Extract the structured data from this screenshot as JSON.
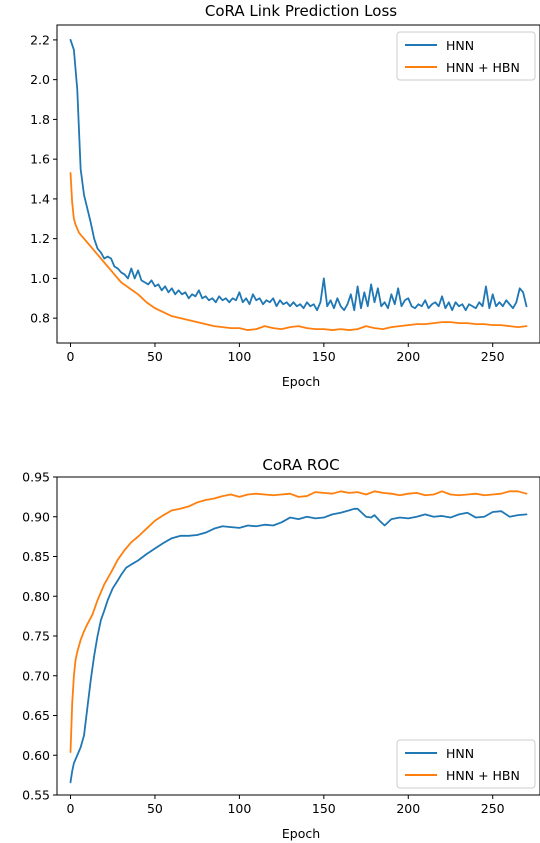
{
  "colors": {
    "hnn": "#1f77b4",
    "hnn_hbn": "#ff7f0e",
    "axis": "#000000",
    "legend_border": "#cccccc"
  },
  "chart_data": [
    {
      "type": "line",
      "title": "CoRA Link Prediction Loss",
      "xlabel": "Epoch",
      "ylabel": "",
      "xlim": [
        -8,
        278
      ],
      "ylim": [
        0.675,
        2.275
      ],
      "xticks": [
        0,
        50,
        100,
        150,
        200,
        250
      ],
      "yticks": [
        0.8,
        1.0,
        1.2,
        1.4,
        1.6,
        1.8,
        2.0,
        2.2
      ],
      "ytick_labels": [
        "0.8",
        "1.0",
        "1.2",
        "1.4",
        "1.6",
        "1.8",
        "2.0",
        "2.2"
      ],
      "legend_position": "top-right",
      "series": [
        {
          "name": "HNN",
          "color": "#1f77b4",
          "x": [
            0,
            2,
            4,
            6,
            8,
            10,
            12,
            14,
            16,
            18,
            20,
            22,
            24,
            26,
            28,
            30,
            32,
            34,
            36,
            38,
            40,
            42,
            44,
            46,
            48,
            50,
            52,
            54,
            56,
            58,
            60,
            62,
            64,
            66,
            68,
            70,
            72,
            74,
            76,
            78,
            80,
            82,
            84,
            86,
            88,
            90,
            92,
            94,
            96,
            98,
            100,
            102,
            104,
            106,
            108,
            110,
            112,
            114,
            116,
            118,
            120,
            122,
            124,
            126,
            128,
            130,
            132,
            134,
            136,
            138,
            140,
            142,
            144,
            146,
            148,
            150,
            152,
            154,
            156,
            158,
            160,
            162,
            164,
            166,
            168,
            170,
            172,
            174,
            176,
            178,
            180,
            182,
            184,
            186,
            188,
            190,
            192,
            194,
            196,
            198,
            200,
            202,
            204,
            206,
            208,
            210,
            212,
            214,
            216,
            218,
            220,
            222,
            224,
            226,
            228,
            230,
            232,
            234,
            236,
            238,
            240,
            242,
            244,
            246,
            248,
            250,
            252,
            254,
            256,
            258,
            260,
            262,
            264,
            266,
            268,
            270
          ],
          "y": [
            2.2,
            2.15,
            1.95,
            1.55,
            1.42,
            1.35,
            1.28,
            1.2,
            1.15,
            1.13,
            1.1,
            1.11,
            1.1,
            1.06,
            1.05,
            1.03,
            1.02,
            1.0,
            1.05,
            1.0,
            1.04,
            0.99,
            0.98,
            0.97,
            0.99,
            0.96,
            0.97,
            0.94,
            0.96,
            0.93,
            0.95,
            0.92,
            0.94,
            0.92,
            0.93,
            0.9,
            0.92,
            0.91,
            0.94,
            0.9,
            0.91,
            0.89,
            0.9,
            0.88,
            0.91,
            0.89,
            0.9,
            0.88,
            0.9,
            0.89,
            0.93,
            0.88,
            0.9,
            0.87,
            0.92,
            0.89,
            0.9,
            0.87,
            0.89,
            0.88,
            0.9,
            0.86,
            0.89,
            0.87,
            0.88,
            0.86,
            0.88,
            0.86,
            0.87,
            0.85,
            0.88,
            0.86,
            0.87,
            0.84,
            0.88,
            1.0,
            0.86,
            0.89,
            0.85,
            0.9,
            0.86,
            0.84,
            0.87,
            0.92,
            0.84,
            0.96,
            0.85,
            0.93,
            0.86,
            0.97,
            0.88,
            0.95,
            0.86,
            0.88,
            0.85,
            0.92,
            0.87,
            0.95,
            0.86,
            0.89,
            0.9,
            0.86,
            0.85,
            0.87,
            0.86,
            0.89,
            0.85,
            0.87,
            0.88,
            0.86,
            0.91,
            0.85,
            0.88,
            0.84,
            0.88,
            0.86,
            0.87,
            0.84,
            0.87,
            0.86,
            0.85,
            0.88,
            0.86,
            0.96,
            0.85,
            0.92,
            0.86,
            0.88,
            0.86,
            0.89,
            0.87,
            0.85,
            0.88,
            0.95,
            0.93,
            0.86
          ]
        },
        {
          "name": "HNN + HBN",
          "color": "#ff7f0e",
          "x": [
            0,
            1,
            2,
            3,
            5,
            8,
            10,
            13,
            16,
            20,
            25,
            30,
            35,
            40,
            45,
            50,
            55,
            60,
            65,
            70,
            75,
            80,
            85,
            90,
            95,
            100,
            105,
            110,
            115,
            120,
            125,
            130,
            135,
            140,
            145,
            150,
            155,
            160,
            165,
            170,
            175,
            180,
            185,
            190,
            195,
            200,
            205,
            210,
            215,
            220,
            225,
            230,
            235,
            240,
            245,
            250,
            255,
            260,
            265,
            270
          ],
          "y": [
            1.53,
            1.38,
            1.3,
            1.27,
            1.23,
            1.2,
            1.18,
            1.15,
            1.12,
            1.08,
            1.03,
            0.98,
            0.95,
            0.92,
            0.88,
            0.85,
            0.83,
            0.81,
            0.8,
            0.79,
            0.78,
            0.77,
            0.76,
            0.755,
            0.75,
            0.75,
            0.74,
            0.745,
            0.76,
            0.75,
            0.745,
            0.755,
            0.76,
            0.75,
            0.745,
            0.745,
            0.74,
            0.745,
            0.74,
            0.745,
            0.76,
            0.75,
            0.745,
            0.755,
            0.76,
            0.765,
            0.77,
            0.77,
            0.775,
            0.78,
            0.78,
            0.775,
            0.775,
            0.77,
            0.77,
            0.765,
            0.765,
            0.76,
            0.755,
            0.76
          ]
        }
      ]
    },
    {
      "type": "line",
      "title": "CoRA ROC",
      "xlabel": "Epoch",
      "ylabel": "",
      "xlim": [
        -8,
        278
      ],
      "ylim": [
        0.55,
        0.95
      ],
      "xticks": [
        0,
        50,
        100,
        150,
        200,
        250
      ],
      "yticks": [
        0.55,
        0.6,
        0.65,
        0.7,
        0.75,
        0.8,
        0.85,
        0.9,
        0.95
      ],
      "ytick_labels": [
        "0.55",
        "0.60",
        "0.65",
        "0.70",
        "0.75",
        "0.80",
        "0.85",
        "0.90",
        "0.95"
      ],
      "legend_position": "bottom-right",
      "series": [
        {
          "name": "HNN",
          "color": "#1f77b4",
          "x": [
            0,
            1,
            2,
            4,
            6,
            8,
            10,
            12,
            14,
            16,
            18,
            20,
            22,
            25,
            28,
            30,
            33,
            36,
            40,
            45,
            50,
            55,
            60,
            65,
            70,
            75,
            80,
            85,
            90,
            95,
            100,
            105,
            110,
            115,
            120,
            125,
            130,
            135,
            140,
            145,
            150,
            155,
            160,
            165,
            168,
            170,
            172,
            175,
            178,
            180,
            183,
            186,
            190,
            195,
            200,
            205,
            210,
            215,
            220,
            225,
            230,
            235,
            240,
            245,
            250,
            255,
            260,
            265,
            270
          ],
          "y": [
            0.566,
            0.58,
            0.59,
            0.6,
            0.61,
            0.625,
            0.66,
            0.695,
            0.725,
            0.75,
            0.77,
            0.782,
            0.795,
            0.81,
            0.82,
            0.827,
            0.836,
            0.84,
            0.845,
            0.853,
            0.86,
            0.867,
            0.873,
            0.876,
            0.876,
            0.877,
            0.88,
            0.885,
            0.888,
            0.887,
            0.886,
            0.889,
            0.888,
            0.89,
            0.889,
            0.893,
            0.899,
            0.897,
            0.9,
            0.898,
            0.899,
            0.903,
            0.905,
            0.908,
            0.91,
            0.91,
            0.906,
            0.9,
            0.899,
            0.902,
            0.895,
            0.889,
            0.897,
            0.899,
            0.898,
            0.9,
            0.903,
            0.9,
            0.901,
            0.899,
            0.903,
            0.905,
            0.899,
            0.9,
            0.906,
            0.907,
            0.9,
            0.902,
            0.903
          ]
        },
        {
          "name": "HNN + HBN",
          "color": "#ff7f0e",
          "x": [
            0,
            1,
            2,
            3,
            4,
            6,
            8,
            10,
            13,
            16,
            20,
            24,
            28,
            32,
            36,
            40,
            45,
            50,
            55,
            60,
            65,
            70,
            75,
            80,
            85,
            90,
            95,
            100,
            105,
            110,
            115,
            120,
            125,
            130,
            135,
            140,
            145,
            150,
            155,
            160,
            165,
            170,
            175,
            180,
            185,
            190,
            195,
            200,
            205,
            210,
            215,
            220,
            225,
            230,
            235,
            240,
            245,
            250,
            255,
            260,
            265,
            270
          ],
          "y": [
            0.604,
            0.665,
            0.7,
            0.72,
            0.73,
            0.745,
            0.756,
            0.765,
            0.777,
            0.795,
            0.815,
            0.83,
            0.846,
            0.858,
            0.868,
            0.875,
            0.885,
            0.895,
            0.902,
            0.908,
            0.91,
            0.913,
            0.918,
            0.921,
            0.923,
            0.926,
            0.928,
            0.925,
            0.928,
            0.929,
            0.928,
            0.927,
            0.928,
            0.929,
            0.925,
            0.926,
            0.931,
            0.93,
            0.929,
            0.932,
            0.93,
            0.931,
            0.928,
            0.932,
            0.93,
            0.929,
            0.927,
            0.929,
            0.93,
            0.927,
            0.928,
            0.932,
            0.928,
            0.927,
            0.928,
            0.929,
            0.927,
            0.928,
            0.929,
            0.932,
            0.932,
            0.929
          ]
        }
      ]
    }
  ]
}
